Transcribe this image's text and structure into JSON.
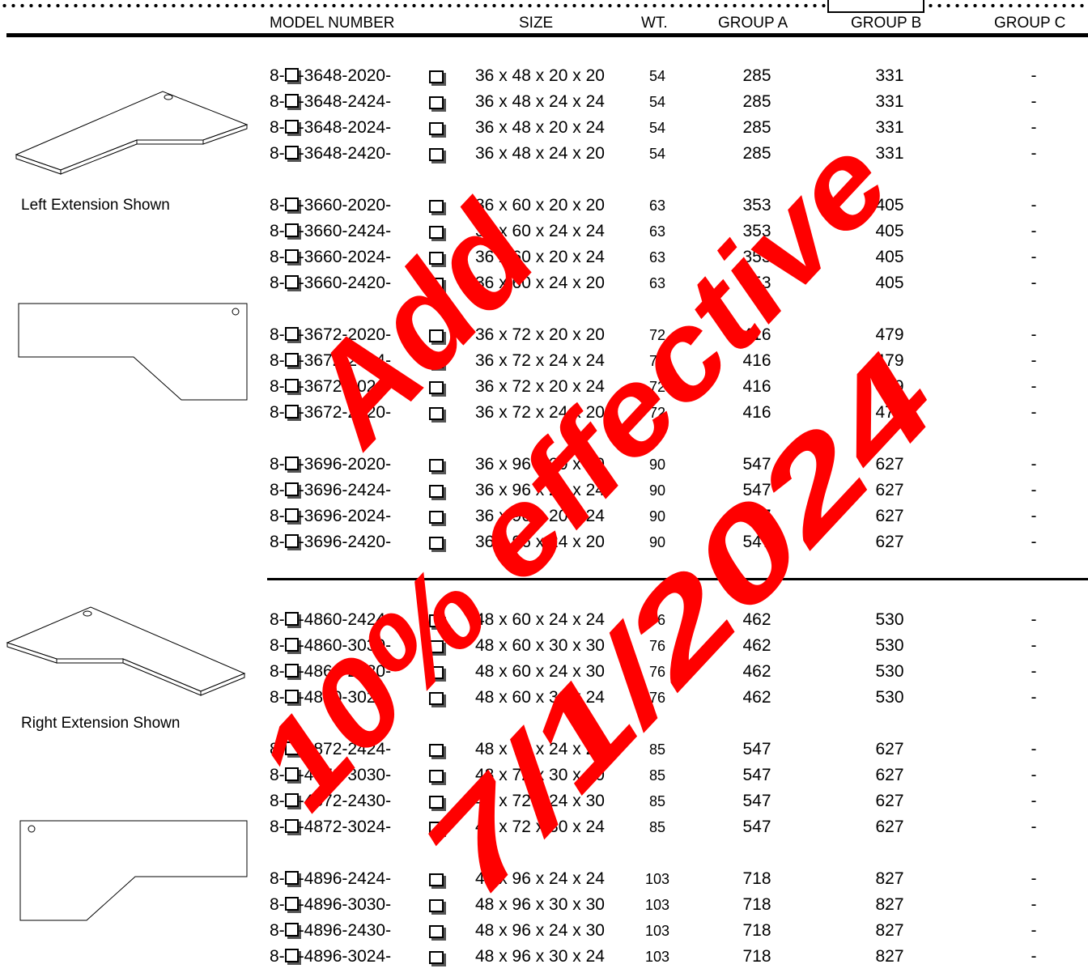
{
  "header": {
    "model": "MODEL NUMBER",
    "size": "SIZE",
    "wt": "WT.",
    "group_a": "GROUP A",
    "group_b": "GROUP B",
    "group_c": "GROUP C"
  },
  "captions": {
    "left": "Left Extension Shown",
    "right": "Right Extension Shown"
  },
  "watermark": {
    "line1": "Add",
    "line2": "10% effective",
    "line3": "7/1/2024",
    "color": "#ff0000"
  },
  "rows": [
    {
      "pre": "8-",
      "model": "-3648-2020-",
      "size": "36 x 48 x 20 x 20",
      "wt": "54",
      "a": "285",
      "b": "331",
      "c": "-"
    },
    {
      "pre": "8-",
      "model": "-3648-2424-",
      "size": "36 x 48 x 24 x 24",
      "wt": "54",
      "a": "285",
      "b": "331",
      "c": "-"
    },
    {
      "pre": "8-",
      "model": "-3648-2024-",
      "size": "36 x 48 x 20 x 24",
      "wt": "54",
      "a": "285",
      "b": "331",
      "c": "-"
    },
    {
      "pre": "8-",
      "model": "-3648-2420-",
      "size": "36 x 48 x 24 x 20",
      "wt": "54",
      "a": "285",
      "b": "331",
      "c": "-"
    },
    {
      "pre": "8-",
      "model": "-3660-2020-",
      "size": "36 x 60 x 20 x 20",
      "wt": "63",
      "a": "353",
      "b": "405",
      "c": "-"
    },
    {
      "pre": "8-",
      "model": "-3660-2424-",
      "size": "36 x 60 x 24 x 24",
      "wt": "63",
      "a": "353",
      "b": "405",
      "c": "-"
    },
    {
      "pre": "8-",
      "model": "-3660-2024-",
      "size": "36 x 60 x 20 x 24",
      "wt": "63",
      "a": "353",
      "b": "405",
      "c": "-"
    },
    {
      "pre": "8-",
      "model": "-3660-2420-",
      "size": "36 x 60 x 24 x 20",
      "wt": "63",
      "a": "353",
      "b": "405",
      "c": "-"
    },
    {
      "pre": "8-",
      "model": "-3672-2020-",
      "size": "36 x 72 x 20 x 20",
      "wt": "72",
      "a": "416",
      "b": "479",
      "c": "-"
    },
    {
      "pre": "8-",
      "model": "-3672-2424-",
      "size": "36 x 72 x 24 x 24",
      "wt": "72",
      "a": "416",
      "b": "479",
      "c": "-"
    },
    {
      "pre": "8-",
      "model": "-3672-2024-",
      "size": "36 x 72 x 20 x 24",
      "wt": "72",
      "a": "416",
      "b": "479",
      "c": "-"
    },
    {
      "pre": "8-",
      "model": "-3672-2420-",
      "size": "36 x 72 x 24 x 20",
      "wt": "72",
      "a": "416",
      "b": "479",
      "c": "-"
    },
    {
      "pre": "8-",
      "model": "-3696-2020-",
      "size": "36 x 96 x 20 x 20",
      "wt": "90",
      "a": "547",
      "b": "627",
      "c": "-"
    },
    {
      "pre": "8-",
      "model": "-3696-2424-",
      "size": "36 x 96 x 24 x 24",
      "wt": "90",
      "a": "547",
      "b": "627",
      "c": "-"
    },
    {
      "pre": "8-",
      "model": "-3696-2024-",
      "size": "36 x 96 x 20 x 24",
      "wt": "90",
      "a": "547",
      "b": "627",
      "c": "-"
    },
    {
      "pre": "8-",
      "model": "-3696-2420-",
      "size": "36 x 96 x 24 x 20",
      "wt": "90",
      "a": "547",
      "b": "627",
      "c": "-"
    },
    {
      "pre": "8-",
      "model": "-4860-2424-",
      "size": "48 x 60 x 24 x 24",
      "wt": "76",
      "a": "462",
      "b": "530",
      "c": "-"
    },
    {
      "pre": "8-",
      "model": "-4860-3030-",
      "size": "48 x 60 x 30 x 30",
      "wt": "76",
      "a": "462",
      "b": "530",
      "c": "-"
    },
    {
      "pre": "8-",
      "model": "-4860-2430-",
      "size": "48 x 60 x 24 x 30",
      "wt": "76",
      "a": "462",
      "b": "530",
      "c": "-"
    },
    {
      "pre": "8-",
      "model": "-4860-3024-",
      "size": "48 x 60 x 30 x 24",
      "wt": "76",
      "a": "462",
      "b": "530",
      "c": "-"
    },
    {
      "pre": "8-",
      "model": "-4872-2424-",
      "size": "48 x 72 x 24 x 24",
      "wt": "85",
      "a": "547",
      "b": "627",
      "c": "-"
    },
    {
      "pre": "8-",
      "model": "-4872-3030-",
      "size": "48 x 72 x 30 x 30",
      "wt": "85",
      "a": "547",
      "b": "627",
      "c": "-"
    },
    {
      "pre": "8-",
      "model": "-4872-2430-",
      "size": "48 x 72 x 24 x 30",
      "wt": "85",
      "a": "547",
      "b": "627",
      "c": "-"
    },
    {
      "pre": "8-",
      "model": "-4872-3024-",
      "size": "48 x 72 x 30 x 24",
      "wt": "85",
      "a": "547",
      "b": "627",
      "c": "-"
    },
    {
      "pre": "8-",
      "model": "-4896-2424-",
      "size": "48 x 96 x 24 x 24",
      "wt": "103",
      "a": "718",
      "b": "827",
      "c": "-"
    },
    {
      "pre": "8-",
      "model": "-4896-3030-",
      "size": "48 x 96 x 30 x 30",
      "wt": "103",
      "a": "718",
      "b": "827",
      "c": "-"
    },
    {
      "pre": "8-",
      "model": "-4896-2430-",
      "size": "48 x 96 x 24 x 30",
      "wt": "103",
      "a": "718",
      "b": "827",
      "c": "-"
    },
    {
      "pre": "8-",
      "model": "-4896-3024-",
      "size": "48 x 96 x 30 x 24",
      "wt": "103",
      "a": "718",
      "b": "827",
      "c": "-"
    }
  ]
}
